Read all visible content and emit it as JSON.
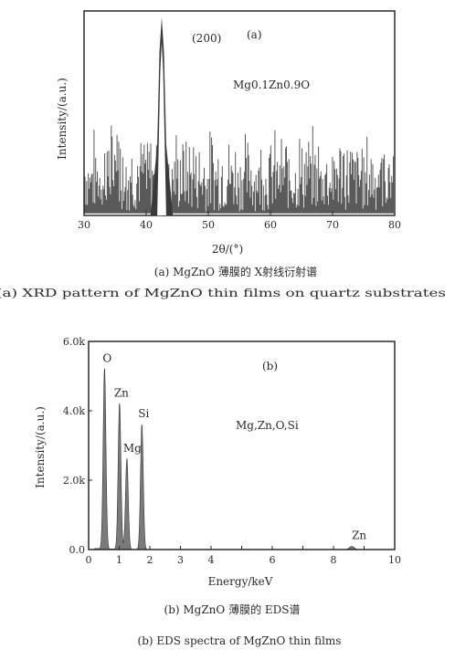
{
  "colors": {
    "ink": "#2a2a2a",
    "noise": "#5a5a5a",
    "peak_fill": "#ffffff",
    "eds_fill": "#7a7a7a",
    "eds_stroke": "#333333"
  },
  "chart_data": [
    {
      "type": "line",
      "panel_label": "(a)",
      "xlabel": "2θ/(°)",
      "ylabel": "Intensity/(a.u.)",
      "xlim": [
        30,
        80
      ],
      "xticks": [
        "30",
        "40",
        "50",
        "60",
        "70",
        "80"
      ],
      "annotation": "Mg0.1Zn0.9O",
      "peak": {
        "label": "(200)",
        "x": 42.5,
        "y": 0.97,
        "width": 0.6
      },
      "noise_floor": {
        "range": [
          0.02,
          0.45
        ],
        "description_visible": false
      },
      "grid": false,
      "caption_cn": "(a) MgZnO 薄膜的 X射线衍射谱",
      "caption_en": "(a) XRD pattern of MgZnO thin films on quartz substrates"
    },
    {
      "type": "area",
      "panel_label": "(b)",
      "xlabel": "Energy/keV",
      "ylabel": "Intensity/(a.u.)",
      "xlim": [
        0,
        10
      ],
      "ylim": [
        0,
        6000
      ],
      "xticks": [
        "0",
        "1",
        "2",
        "3",
        "4",
        "5",
        "6",
        "7",
        "8",
        "9",
        "10"
      ],
      "yticks": [
        "0.0",
        "2.0k",
        "4.0k",
        "6.0k"
      ],
      "annotation": "Mg,Zn,O,Si",
      "peaks": [
        {
          "label": "O",
          "x": 0.52,
          "y": 5200
        },
        {
          "label": "Zn",
          "x": 1.01,
          "y": 4200
        },
        {
          "label": "Mg",
          "x": 1.25,
          "y": 2600
        },
        {
          "label": "Si",
          "x": 1.74,
          "y": 3600
        },
        {
          "label": "Zn",
          "x": 8.6,
          "y": 90
        }
      ],
      "grid": false,
      "caption_cn": "(b) MgZnO 薄膜的 EDS谱",
      "caption_en": "(b) EDS spectra of MgZnO thin films"
    }
  ]
}
